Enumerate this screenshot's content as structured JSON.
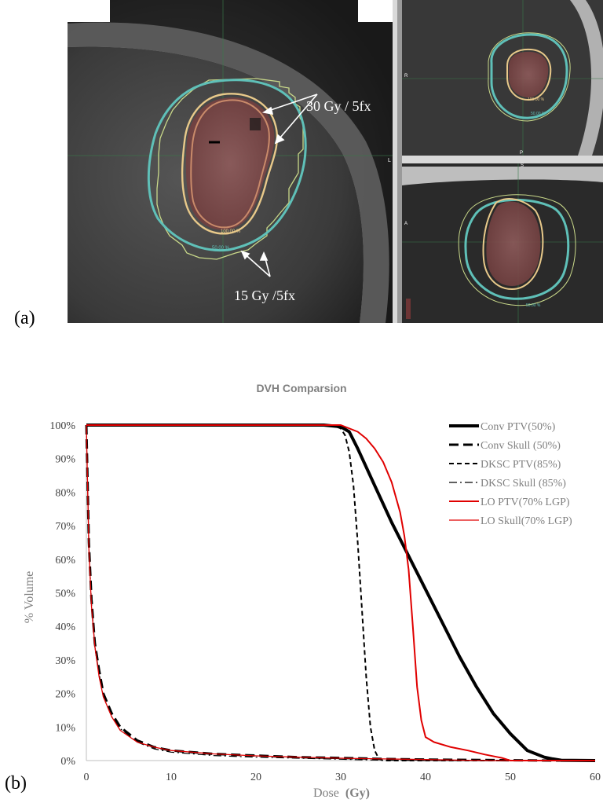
{
  "panel_a": {
    "label": "(a)",
    "annotations": {
      "high_dose": "30 Gy / 5fx",
      "low_dose": "15 Gy /5fx",
      "iso_100": "100.00 %",
      "iso_50": "50.00 %",
      "iso_100_small": "100.00 %",
      "iso_50_small": "50.00 %",
      "iso_50_bottom": "50.00 %",
      "orient_L": "L",
      "orient_R": "R",
      "orient_P": "P",
      "orient_S": "S",
      "orient_A": "A"
    },
    "colors": {
      "ptv_fill": "#8a4a4a",
      "iso100": "#e8c98a",
      "iso50": "#5fc0b8",
      "crosshair": "#3a7a4a"
    }
  },
  "panel_b": {
    "label": "(b)"
  },
  "chart_data": {
    "type": "line",
    "title": "DVH Comparsion",
    "xlabel": "Dose",
    "xlabel_unit": "(Gy)",
    "ylabel": "% Volume",
    "xlim": [
      0,
      60
    ],
    "ylim": [
      0,
      100
    ],
    "xticks": [
      "0",
      "10",
      "20",
      "30",
      "40",
      "50",
      "60"
    ],
    "yticks": [
      "0%",
      "10%",
      "20%",
      "30%",
      "40%",
      "50%",
      "60%",
      "70%",
      "80%",
      "90%",
      "100%"
    ],
    "legend_position": "top-right",
    "series": [
      {
        "name": "Conv PTV(50%)",
        "color": "#000000",
        "style": "solid-thick",
        "x": [
          0,
          28,
          30,
          31,
          32,
          34,
          36,
          38,
          40,
          42,
          44,
          46,
          48,
          50,
          52,
          54,
          55,
          56,
          60
        ],
        "y": [
          100,
          100,
          99.5,
          98,
          93,
          82,
          71,
          61,
          51,
          41,
          31,
          22,
          14,
          8,
          3,
          1,
          0.5,
          0.1,
          0
        ]
      },
      {
        "name": "Conv Skull (50%)",
        "color": "#000000",
        "style": "dashed-thick",
        "x": [
          0,
          0.3,
          0.6,
          1,
          1.5,
          2,
          3,
          4,
          6,
          8,
          10,
          15,
          20,
          25,
          30,
          35,
          40,
          45,
          50,
          55,
          60
        ],
        "y": [
          100,
          65,
          48,
          35,
          27,
          20,
          14,
          10,
          6,
          4,
          3,
          2,
          1.5,
          1,
          0.8,
          0.5,
          0.3,
          0.2,
          0.1,
          0,
          0
        ]
      },
      {
        "name": "DKSC PTV(85%)",
        "color": "#000000",
        "style": "dashed",
        "x": [
          0,
          29,
          30,
          30.5,
          31,
          31.5,
          32,
          32.5,
          33,
          33.5,
          34,
          34.5,
          35,
          60
        ],
        "y": [
          100,
          100,
          99,
          97,
          92,
          82,
          65,
          45,
          25,
          10,
          3,
          0.5,
          0,
          0
        ]
      },
      {
        "name": "DKSC Skull (85%)",
        "color": "#000000",
        "style": "dashdot",
        "x": [
          0,
          0.3,
          0.6,
          1,
          1.5,
          2,
          3,
          4,
          6,
          8,
          10,
          15,
          20,
          25,
          30,
          35,
          40,
          60
        ],
        "y": [
          100,
          64,
          47,
          34,
          26,
          19,
          13,
          9.5,
          5.5,
          3.5,
          2.5,
          1.5,
          1,
          0.7,
          0.4,
          0.1,
          0,
          0
        ]
      },
      {
        "name": "LO PTV(70% LGP)",
        "color": "#e00000",
        "style": "solid",
        "x": [
          0,
          30,
          32,
          33,
          34,
          35,
          36,
          37,
          37.5,
          38,
          38.5,
          39,
          39.5,
          40,
          41,
          43,
          45,
          47,
          49,
          50,
          60
        ],
        "y": [
          100,
          100,
          98,
          96,
          93,
          89,
          83,
          74,
          67,
          57,
          40,
          22,
          12,
          7,
          5.5,
          4,
          3,
          1.8,
          0.8,
          0,
          0
        ]
      },
      {
        "name": "LO Skull(70% LGP)",
        "color": "#e00000",
        "style": "solid-thin",
        "x": [
          0,
          0.3,
          0.6,
          1,
          1.5,
          2,
          3,
          4,
          6,
          8,
          10,
          15,
          20,
          25,
          30,
          35,
          40,
          45,
          48,
          60
        ],
        "y": [
          100,
          63,
          46,
          34,
          25,
          19,
          13,
          9,
          5.5,
          4,
          3,
          2,
          1.4,
          1,
          0.7,
          0.5,
          0.3,
          0.1,
          0,
          0
        ]
      }
    ]
  }
}
